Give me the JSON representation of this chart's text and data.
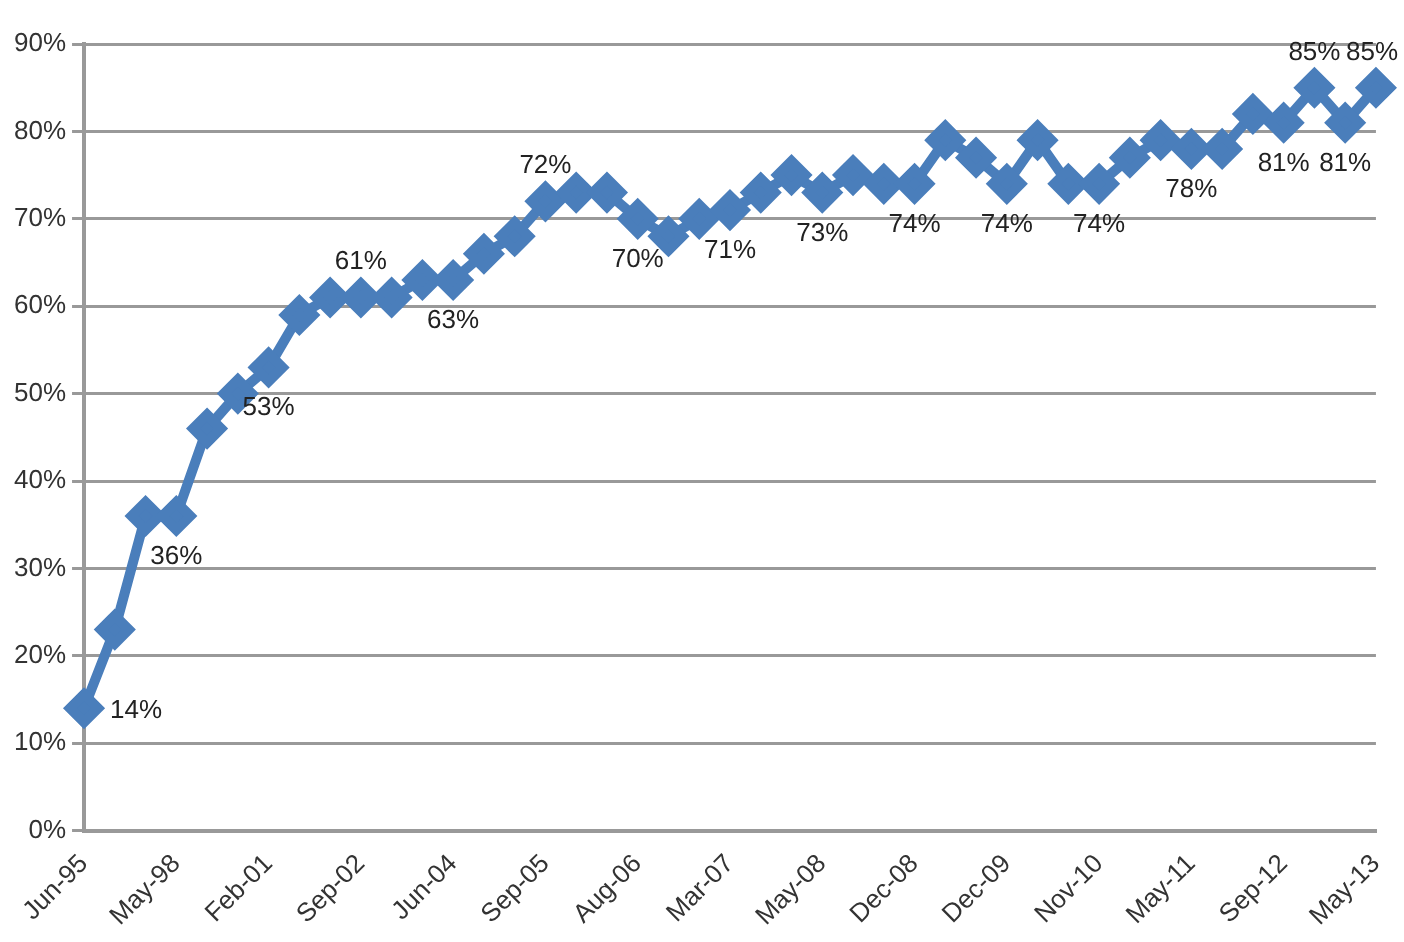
{
  "chart_data": {
    "type": "line",
    "categories": [
      "Jun-95",
      null,
      null,
      "May-98",
      null,
      null,
      "Feb-01",
      null,
      null,
      "Sep-02",
      null,
      null,
      "Jun-04",
      null,
      null,
      "Sep-05",
      null,
      null,
      "Aug-06",
      null,
      null,
      "Mar-07",
      null,
      null,
      "May-08",
      null,
      null,
      "Dec-08",
      null,
      null,
      "Dec-09",
      null,
      null,
      "Nov-10",
      null,
      null,
      "May-11",
      null,
      null,
      "Sep-12",
      null,
      null,
      "May-13"
    ],
    "series": [
      {
        "color": "#4a7ebb",
        "values": [
          14,
          23,
          36,
          36,
          46,
          50,
          53,
          59,
          61,
          61,
          61,
          63,
          63,
          66,
          68,
          72,
          73,
          73,
          70,
          68,
          70,
          71,
          73,
          75,
          73,
          75,
          74,
          74,
          79,
          77,
          74,
          79,
          74,
          74,
          77,
          79,
          78,
          78,
          82,
          81,
          85,
          81,
          85
        ],
        "value_labels": [
          "14%",
          null,
          null,
          "36%",
          null,
          null,
          "53%",
          null,
          null,
          "61%",
          null,
          null,
          "63%",
          null,
          null,
          "72%",
          null,
          null,
          "70%",
          null,
          null,
          "71%",
          null,
          null,
          "73%",
          null,
          null,
          "74%",
          null,
          null,
          "74%",
          null,
          null,
          "74%",
          null,
          null,
          "78%",
          null,
          null,
          "81%",
          "85%",
          "81%",
          "85%"
        ]
      }
    ],
    "ylim": [
      0,
      90
    ],
    "yticks": [
      {
        "value": 0,
        "label": "0%"
      },
      {
        "value": 10,
        "label": "10%"
      },
      {
        "value": 20,
        "label": "20%"
      },
      {
        "value": 30,
        "label": "30%"
      },
      {
        "value": 40,
        "label": "40%"
      },
      {
        "value": 50,
        "label": "50%"
      },
      {
        "value": 60,
        "label": "60%"
      },
      {
        "value": 70,
        "label": "70%"
      },
      {
        "value": 80,
        "label": "80%"
      },
      {
        "value": 90,
        "label": "90%"
      }
    ],
    "grid": "y",
    "legend": false,
    "marker": "diamond",
    "line_style": "solid"
  }
}
